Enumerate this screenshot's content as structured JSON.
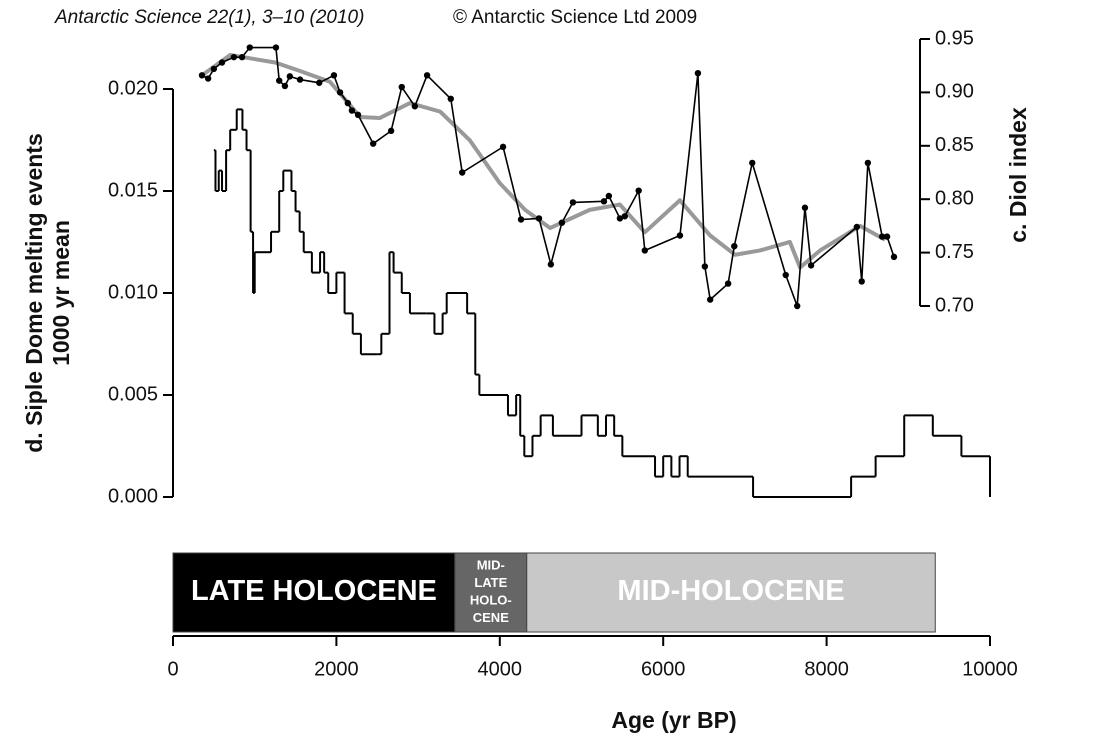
{
  "chart_data": {
    "type": "line",
    "source": "Antarctic Science 22(1), 3–10 (2010)",
    "copyright": "© Antarctic Science Ltd  2009",
    "xlabel": "Age (yr BP)",
    "ylabel": [
      "d. Siple Dome melting events",
      "1000 yr mean"
    ],
    "y2label": "c. Diol index",
    "xlim": [
      0,
      10000
    ],
    "xticks": [
      0,
      2000,
      4000,
      6000,
      8000,
      10000
    ],
    "ylim": [
      0,
      0.02
    ],
    "yticks": [
      {
        "value": 0,
        "label": "0.000"
      },
      {
        "value": 0.005,
        "label": "0.005"
      },
      {
        "value": 0.01,
        "label": "0.010"
      },
      {
        "value": 0.015,
        "label": "0.015"
      },
      {
        "value": 0.02,
        "label": "0.020"
      }
    ],
    "y2lim": [
      0.7,
      0.95
    ],
    "y2ticks": [
      {
        "value": 0.7,
        "label": "0.70"
      },
      0.75,
      {
        "value": 0.8,
        "label": "0.80"
      },
      0.85,
      {
        "value": 0.9,
        "label": "0.90"
      },
      0.95
    ],
    "series": [
      {
        "color": "#000000",
        "step": true,
        "x": [
          500,
          520,
          560,
          600,
          650,
          700,
          780,
          850,
          900,
          950,
          980,
          1000,
          1150,
          1200,
          1300,
          1350,
          1450,
          1500,
          1550,
          1600,
          1700,
          1800,
          1850,
          1900,
          2000,
          2100,
          2200,
          2300,
          2500,
          2550,
          2650,
          2700,
          2800,
          2900,
          3100,
          3200,
          3300,
          3350,
          3500,
          3600,
          3700,
          3750,
          4100,
          4200,
          4250,
          4300,
          4400,
          4500,
          4650,
          5000,
          5200,
          5300,
          5400,
          5500,
          5900,
          6000,
          6100,
          6200,
          6300,
          7100,
          8300,
          8600,
          8950,
          9300,
          9650
        ],
        "values": [
          0.017,
          0.015,
          0.016,
          0.015,
          0.017,
          0.018,
          0.019,
          0.018,
          0.017,
          0.013,
          0.01,
          0.012,
          0.012,
          0.013,
          0.015,
          0.016,
          0.015,
          0.014,
          0.013,
          0.012,
          0.011,
          0.012,
          0.011,
          0.01,
          0.011,
          0.009,
          0.008,
          0.007,
          0.007,
          0.008,
          0.012,
          0.011,
          0.01,
          0.009,
          0.009,
          0.008,
          0.009,
          0.01,
          0.01,
          0.009,
          0.006,
          0.005,
          0.004,
          0.005,
          0.003,
          0.002,
          0.003,
          0.004,
          0.003,
          0.004,
          0.003,
          0.004,
          0.003,
          0.002,
          0.001,
          0.002,
          0.001,
          0.002,
          0.001,
          0,
          0.001,
          0.002,
          0.004,
          0.003,
          0.002
        ]
      },
      {
        "color": "#999999",
        "axis": "y2",
        "x": [
          355,
          700,
          1250,
          1555,
          1920,
          2290,
          2530,
          2900,
          3270,
          3635,
          4000,
          4310,
          4615,
          5100,
          5470,
          5775,
          6205,
          6575,
          6880,
          7185,
          7550,
          7675,
          7920,
          8410,
          8715
        ],
        "values": [
          0.916,
          0.935,
          0.928,
          0.92,
          0.91,
          0.877,
          0.876,
          0.89,
          0.882,
          0.855,
          0.815,
          0.79,
          0.773,
          0.79,
          0.795,
          0.769,
          0.799,
          0.766,
          0.748,
          0.752,
          0.76,
          0.736,
          0.752,
          0.775,
          0.762
        ]
      },
      {
        "color": "#000000",
        "axis": "y2",
        "markers": true,
        "x": [
          355,
          430,
          500,
          600,
          745,
          845,
          940,
          1260,
          1300,
          1370,
          1430,
          1555,
          1790,
          1970,
          2045,
          2140,
          2190,
          2265,
          2450,
          2670,
          2800,
          2960,
          3110,
          3400,
          3540,
          4040,
          4260,
          4480,
          4625,
          4760,
          4895,
          5275,
          5335,
          5470,
          5530,
          5700,
          5775,
          6205,
          6425,
          6510,
          6575,
          6795,
          6870,
          7090,
          7500,
          7640,
          7735,
          7810,
          8370,
          8430,
          8505,
          8680,
          8740,
          8825
        ],
        "values": [
          0.916,
          0.913,
          0.922,
          0.928,
          0.933,
          0.933,
          0.942,
          0.942,
          0.911,
          0.906,
          0.915,
          0.912,
          0.909,
          0.916,
          0.9,
          0.89,
          0.883,
          0.879,
          0.852,
          0.864,
          0.905,
          0.887,
          0.916,
          0.894,
          0.825,
          0.849,
          0.781,
          0.782,
          0.739,
          0.778,
          0.797,
          0.798,
          0.803,
          0.782,
          0.784,
          0.808,
          0.752,
          0.766,
          0.918,
          0.737,
          0.706,
          0.721,
          0.756,
          0.834,
          0.729,
          0.7,
          0.792,
          0.738,
          0.774,
          0.723,
          0.834,
          0.765,
          0.765,
          0.746
        ]
      }
    ],
    "periods": [
      {
        "lines": [
          "LATE HOLOCENE"
        ],
        "start": 0,
        "end": 3450,
        "color": "#000000"
      },
      {
        "lines": [
          "MID-",
          "LATE",
          "HOLO-",
          "CENE"
        ],
        "start": 3450,
        "end": 4330,
        "color": "#666666"
      },
      {
        "lines": [
          "MID-HOLOCENE"
        ],
        "start": 4330,
        "end": 9330,
        "color": "#c8c8c8"
      }
    ]
  }
}
